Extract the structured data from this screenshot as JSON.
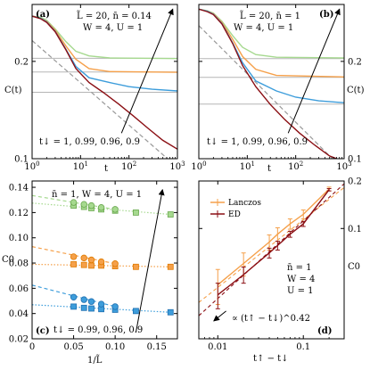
{
  "chart_data": [
    {
      "panel": "(a)",
      "type": "line",
      "scale": "loglog",
      "xlabel": "t",
      "ylabel": "C(t)",
      "xlim": [
        1,
        1000
      ],
      "ylim": [
        0.1,
        0.3
      ],
      "ylabel_side": "left",
      "x_ticks": [
        {
          "v": 1,
          "label": "10^0"
        },
        {
          "v": 10,
          "label": "10^1"
        },
        {
          "v": 100,
          "label": "10^2"
        },
        {
          "v": 1000,
          "label": "10^3"
        }
      ],
      "y_ticks": [
        {
          "v": 0.1,
          "label": "0.1"
        },
        {
          "v": 0.2,
          "label": "0.2"
        }
      ],
      "params_lines": [
        "L̃ = 20, n̄ = 0.14",
        "W = 4, U = 1"
      ],
      "annotation": "t↓ = 1, 0.99, 0.96, 0.9",
      "hlines": [
        0.2045,
        0.1855,
        0.1605
      ],
      "fit_line": {
        "x": [
          1,
          1000
        ],
        "y": [
          0.232,
          0.094
        ],
        "style": "dashed",
        "color": "#999999"
      },
      "series": [
        {
          "color": "#a6d98f",
          "x": [
            1,
            1.5,
            2,
            3,
            5,
            8,
            15,
            40,
            1000
          ],
          "y": [
            0.276,
            0.274,
            0.268,
            0.252,
            0.23,
            0.215,
            0.208,
            0.205,
            0.204
          ]
        },
        {
          "color": "#f5a04a",
          "x": [
            1,
            1.5,
            2,
            3,
            5,
            8,
            15,
            40,
            1000
          ],
          "y": [
            0.276,
            0.272,
            0.266,
            0.25,
            0.223,
            0.203,
            0.19,
            0.186,
            0.185
          ]
        },
        {
          "color": "#3d9ddb",
          "x": [
            1,
            1.5,
            2,
            3,
            5,
            8,
            15,
            40,
            100,
            300,
            1000
          ],
          "y": [
            0.276,
            0.272,
            0.265,
            0.248,
            0.218,
            0.193,
            0.178,
            0.172,
            0.167,
            0.164,
            0.162
          ]
        },
        {
          "color": "#8b0f14",
          "x": [
            1,
            1.5,
            2,
            3,
            5,
            8,
            15,
            30,
            60,
            120,
            250,
            500,
            1000
          ],
          "y": [
            0.276,
            0.271,
            0.264,
            0.247,
            0.217,
            0.19,
            0.172,
            0.16,
            0.148,
            0.136,
            0.124,
            0.114,
            0.107
          ]
        }
      ],
      "arrow": {
        "from": [
          70,
          0.12
        ],
        "to": [
          800,
          0.29
        ]
      }
    },
    {
      "panel": "(b)",
      "type": "line",
      "scale": "loglog",
      "xlabel": "t",
      "ylabel": "C(t)",
      "xlim": [
        1,
        1000
      ],
      "ylim": [
        0.1,
        0.3
      ],
      "ylabel_side": "right",
      "x_ticks": [
        {
          "v": 1,
          "label": "10^0"
        },
        {
          "v": 10,
          "label": "10^1"
        },
        {
          "v": 100,
          "label": "10^2"
        },
        {
          "v": 1000,
          "label": "10^3"
        }
      ],
      "y_ticks": [
        {
          "v": 0.1,
          "label": "0.1"
        },
        {
          "v": 0.2,
          "label": "0.2"
        }
      ],
      "params_lines": [
        "L̃ = 20, n̄ = 1",
        "W = 4, U = 1"
      ],
      "annotation": "t↓ = 1, 0.99, 0.96, 0.9",
      "hlines": [
        0.204,
        0.1785,
        0.1475
      ],
      "fit_line": {
        "x": [
          1,
          1000
        ],
        "y": [
          0.258,
          0.092
        ],
        "style": "dashed",
        "color": "#999999"
      },
      "series": [
        {
          "color": "#a6d98f",
          "x": [
            1,
            1.5,
            2,
            3,
            5,
            8,
            15,
            40,
            1000
          ],
          "y": [
            0.29,
            0.287,
            0.282,
            0.266,
            0.24,
            0.221,
            0.21,
            0.206,
            0.205
          ]
        },
        {
          "color": "#f5a04a",
          "x": [
            1,
            1.5,
            2,
            3,
            5,
            8,
            15,
            40,
            1000
          ],
          "y": [
            0.29,
            0.286,
            0.281,
            0.264,
            0.234,
            0.207,
            0.189,
            0.181,
            0.179
          ]
        },
        {
          "color": "#3d9ddb",
          "x": [
            1,
            1.5,
            2,
            3,
            5,
            8,
            15,
            40,
            100,
            300,
            1000
          ],
          "y": [
            0.29,
            0.286,
            0.28,
            0.262,
            0.228,
            0.198,
            0.174,
            0.162,
            0.155,
            0.151,
            0.149
          ]
        },
        {
          "color": "#8b0f14",
          "x": [
            1,
            1.5,
            2,
            3,
            5,
            8,
            15,
            30,
            60,
            120,
            250,
            500,
            1000
          ],
          "y": [
            0.29,
            0.285,
            0.279,
            0.261,
            0.227,
            0.194,
            0.167,
            0.147,
            0.132,
            0.12,
            0.11,
            0.102,
            0.098
          ]
        }
      ],
      "arrow": {
        "from": [
          70,
          0.12
        ],
        "to": [
          800,
          0.29
        ]
      }
    },
    {
      "panel": "(c)",
      "type": "scatter",
      "scale": "linear",
      "xlabel": "1/L̃",
      "ylabel": "C0",
      "xlim": [
        0,
        0.175
      ],
      "ylim": [
        0.02,
        0.145
      ],
      "x_ticks": [
        {
          "v": 0,
          "label": "0"
        },
        {
          "v": 0.05,
          "label": "0.05"
        },
        {
          "v": 0.1,
          "label": "0.10"
        },
        {
          "v": 0.15,
          "label": "0.15"
        }
      ],
      "y_ticks": [
        {
          "v": 0.02,
          "label": "0.02"
        },
        {
          "v": 0.04,
          "label": "0.04"
        },
        {
          "v": 0.06,
          "label": "0.06"
        },
        {
          "v": 0.08,
          "label": "0.08"
        },
        {
          "v": 0.1,
          "label": "0.10"
        },
        {
          "v": 0.12,
          "label": "0.12"
        },
        {
          "v": 0.14,
          "label": "0.14"
        }
      ],
      "params_lines": [
        "n̄ = 1, W = 4, U = 1"
      ],
      "annotation": "t↓ = 0.99, 0.96, 0.9",
      "groups": [
        {
          "color": "#a6d98f",
          "edge": "#6aa84f",
          "circles": {
            "x": [
              0.05,
              0.0625,
              0.0714,
              0.0833,
              0.1
            ],
            "y": [
              0.128,
              0.1265,
              0.1255,
              0.124,
              0.1225
            ]
          },
          "squares": {
            "x": [
              0.05,
              0.0625,
              0.0714,
              0.0833,
              0.1,
              0.125,
              0.1667
            ],
            "y": [
              0.1255,
              0.1245,
              0.1235,
              0.1225,
              0.1215,
              0.12,
              0.1185
            ]
          },
          "dashed": {
            "x": [
              0,
              0.1
            ],
            "y": [
              0.1335,
              0.1225
            ]
          },
          "dotted": {
            "x": [
              0,
              0.1667
            ],
            "y": [
              0.1275,
              0.1185
            ]
          }
        },
        {
          "color": "#f5a04a",
          "edge": "#e07b00",
          "circles": {
            "x": [
              0.05,
              0.0625,
              0.0714,
              0.0833,
              0.1
            ],
            "y": [
              0.085,
              0.084,
              0.0825,
              0.081,
              0.0795
            ]
          },
          "squares": {
            "x": [
              0.05,
              0.0625,
              0.0714,
              0.0833,
              0.1,
              0.125,
              0.1667
            ],
            "y": [
              0.079,
              0.0785,
              0.078,
              0.078,
              0.0775,
              0.077,
              0.077
            ]
          },
          "dashed": {
            "x": [
              0,
              0.1
            ],
            "y": [
              0.093,
              0.0795
            ]
          },
          "dotted": {
            "x": [
              0,
              0.1667
            ],
            "y": [
              0.079,
              0.077
            ]
          }
        },
        {
          "color": "#3d9ddb",
          "edge": "#1f6fb0",
          "circles": {
            "x": [
              0.05,
              0.0625,
              0.0714,
              0.0833,
              0.1
            ],
            "y": [
              0.053,
              0.051,
              0.0495,
              0.0475,
              0.0455
            ]
          },
          "squares": {
            "x": [
              0.05,
              0.0625,
              0.0714,
              0.0833,
              0.1,
              0.125,
              0.1667
            ],
            "y": [
              0.0455,
              0.0445,
              0.044,
              0.0435,
              0.043,
              0.042,
              0.041
            ]
          },
          "dashed": {
            "x": [
              0,
              0.1
            ],
            "y": [
              0.0625,
              0.0455
            ]
          },
          "dotted": {
            "x": [
              0,
              0.1667
            ],
            "y": [
              0.047,
              0.041
            ]
          }
        }
      ],
      "arrow": {
        "from": [
          0.125,
          0.025
        ],
        "to": [
          0.157,
          0.138
        ]
      }
    },
    {
      "panel": "(d)",
      "type": "line",
      "scale": "loglog",
      "xlabel": "t↑ − t↓",
      "ylabel": "C0",
      "xlim": [
        0.006,
        0.3
      ],
      "ylim": [
        0.02,
        0.2
      ],
      "ylabel_side": "right",
      "x_ticks": [
        {
          "v": 0.01,
          "label": "0.01"
        },
        {
          "v": 0.1,
          "label": "0.1"
        }
      ],
      "y_ticks": [
        {
          "v": 0.1,
          "label": "0.1"
        },
        {
          "v": 0.2,
          "label": "0.2"
        }
      ],
      "params_lines": [
        "n̄ = 1",
        "W = 4",
        "U = 1"
      ],
      "fit_label": "∝ (t↑ − t↓)^0.42",
      "legend": [
        "Lanczos",
        "ED"
      ],
      "series": [
        {
          "name": "Lanczos",
          "color": "#f5a04a",
          "x": [
            0.01,
            0.02,
            0.04,
            0.05,
            0.07,
            0.1,
            0.2
          ],
          "y": [
            0.044,
            0.06,
            0.082,
            0.092,
            0.107,
            0.123,
            0.178
          ],
          "yerr": [
            0.011,
            0.01,
            0.009,
            0.009,
            0.008,
            0.008,
            0.005
          ]
        },
        {
          "name": "ED",
          "color": "#8b0f14",
          "x": [
            0.01,
            0.02,
            0.04,
            0.05,
            0.07,
            0.1,
            0.2
          ],
          "y": [
            0.038,
            0.051,
            0.07,
            0.078,
            0.092,
            0.107,
            0.176
          ],
          "yerr": [
            0.007,
            0.006,
            0.005,
            0.005,
            0.004,
            0.004,
            0.003
          ]
        }
      ],
      "fit_lines": [
        {
          "color": "#f5a04a",
          "x": [
            0.006,
            0.3
          ],
          "y": [
            0.034,
            0.182
          ]
        },
        {
          "color": "#8b0f14",
          "x": [
            0.006,
            0.3
          ],
          "y": [
            0.028,
            0.192
          ]
        }
      ],
      "pointer_arrow": {
        "from": [
          0.0125,
          0.03
        ],
        "to": [
          0.009,
          0.026
        ]
      }
    }
  ]
}
